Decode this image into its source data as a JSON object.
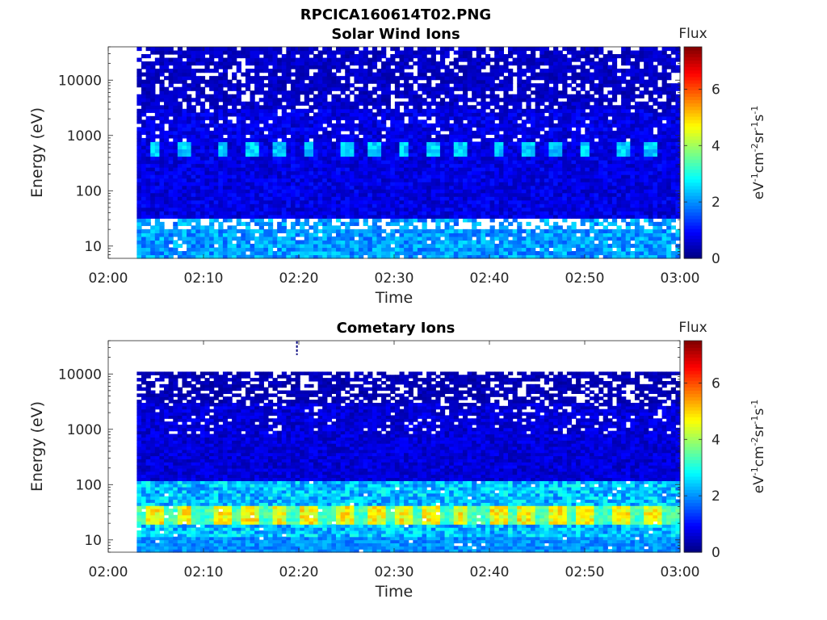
{
  "figure_title": "RPCICA160614T02.PNG",
  "colors": {
    "no_data": "#ffffff",
    "colormap": "jet",
    "axis": "#262626"
  },
  "chart_data": [
    {
      "type": "heatmap",
      "title": "Solar Wind Ions",
      "xlabel": "Time",
      "ylabel": "Energy (eV)",
      "x_ticks": [
        "02:00",
        "02:10",
        "02:20",
        "02:30",
        "02:40",
        "02:50",
        "03:00"
      ],
      "y_ticks": [
        "10",
        "100",
        "1000",
        "10000"
      ],
      "y_scale": "log",
      "ylim": [
        6,
        40000
      ],
      "xlim": [
        "02:00",
        "03:00"
      ],
      "data_start": "02:03",
      "colorbar": {
        "title": "Flux",
        "label": "eV-1cm-2sr-1s-1",
        "ticks": [
          "0",
          "2",
          "4",
          "6"
        ],
        "range": [
          0,
          7.5
        ]
      },
      "description_features": {
        "background_flux": 1.0,
        "low_energy_band_eV": [
          6,
          30
        ],
        "low_energy_flux": 2.2,
        "periodic_peak_energy_eV": [
          450,
          800
        ],
        "periodic_peak_flux": 2.6,
        "periodic_peak_times": [
          "02:05",
          "02:08",
          "02:12",
          "02:15",
          "02:18",
          "02:21",
          "02:25",
          "02:28",
          "02:31",
          "02:34",
          "02:37",
          "02:41",
          "02:44",
          "02:47",
          "02:50",
          "02:54",
          "02:57"
        ]
      }
    },
    {
      "type": "heatmap",
      "title": "Cometary Ions",
      "xlabel": "Time",
      "ylabel": "Energy (eV)",
      "x_ticks": [
        "02:00",
        "02:10",
        "02:20",
        "02:30",
        "02:40",
        "02:50",
        "03:00"
      ],
      "y_ticks": [
        "10",
        "100",
        "1000",
        "10000"
      ],
      "y_scale": "log",
      "ylim": [
        6,
        40000
      ],
      "xlim": [
        "02:00",
        "03:00"
      ],
      "data_start": "02:03",
      "data_top_eV": 11000,
      "colorbar": {
        "title": "Flux",
        "label": "eV-1cm-2sr-1s-1",
        "ticks": [
          "0",
          "2",
          "4",
          "6"
        ],
        "range": [
          0,
          7.5
        ]
      },
      "description_features": {
        "background_flux": 1.0,
        "peak_energy_eV": [
          20,
          40
        ],
        "peak_flux": 4.8,
        "band_flux": 2.8,
        "periodic_peak_times": [
          "02:05",
          "02:08",
          "02:12",
          "02:15",
          "02:18",
          "02:21",
          "02:25",
          "02:28",
          "02:31",
          "02:34",
          "02:37",
          "02:41",
          "02:44",
          "02:47",
          "02:50",
          "02:54",
          "02:57"
        ]
      }
    }
  ]
}
